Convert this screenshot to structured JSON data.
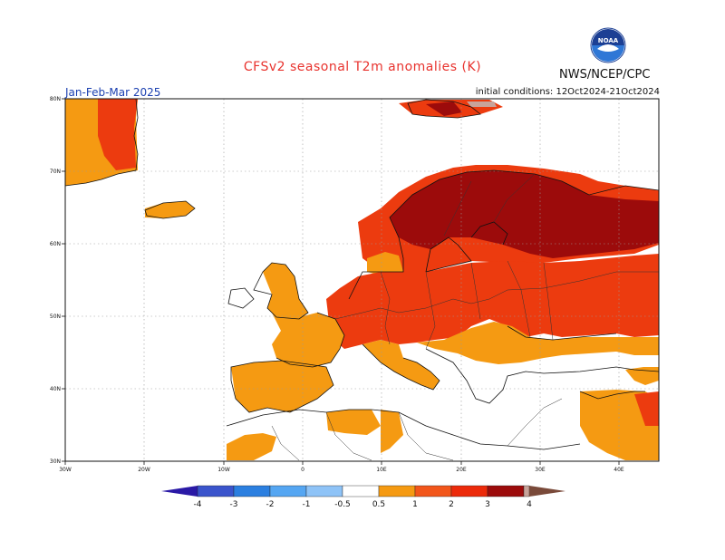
{
  "title": "CFSv2 seasonal T2m anomalies (K)",
  "agency": "NWS/NCEP/CPC",
  "logo": "noaa-logo",
  "period": "Jan-Feb-Mar 2025",
  "initial_conditions": "initial conditions: 12Oct2024-21Oct2024",
  "map": {
    "region": "Europe",
    "lon_range": [
      -30,
      45
    ],
    "lat_range": [
      30,
      80
    ],
    "lat_labels": [
      "80N",
      "70N",
      "60N",
      "50N",
      "40N",
      "30N"
    ],
    "lon_labels": [
      "30W",
      "20W",
      "10W",
      "0",
      "10E",
      "20E",
      "30E",
      "40E"
    ],
    "grid": true
  },
  "colorbar": {
    "labels": [
      "-4",
      "-3",
      "-2",
      "-1",
      "-0.5",
      "0.5",
      "1",
      "2",
      "3",
      "4"
    ],
    "colors": [
      "#2a19a6",
      "#3a54cc",
      "#2b7fe0",
      "#55a6f2",
      "#8ec3f7",
      "#ffffff",
      "#f59a12",
      "#f2561a",
      "#ec2a0a",
      "#9c0b0b",
      "#c8a39a",
      "#7a4a3a"
    ]
  },
  "anomaly_classes": {
    "c1": "#f59a12",
    "c2": "#ec3b0f",
    "c3": "#9c0b0b",
    "c4": "#c8a39a"
  }
}
